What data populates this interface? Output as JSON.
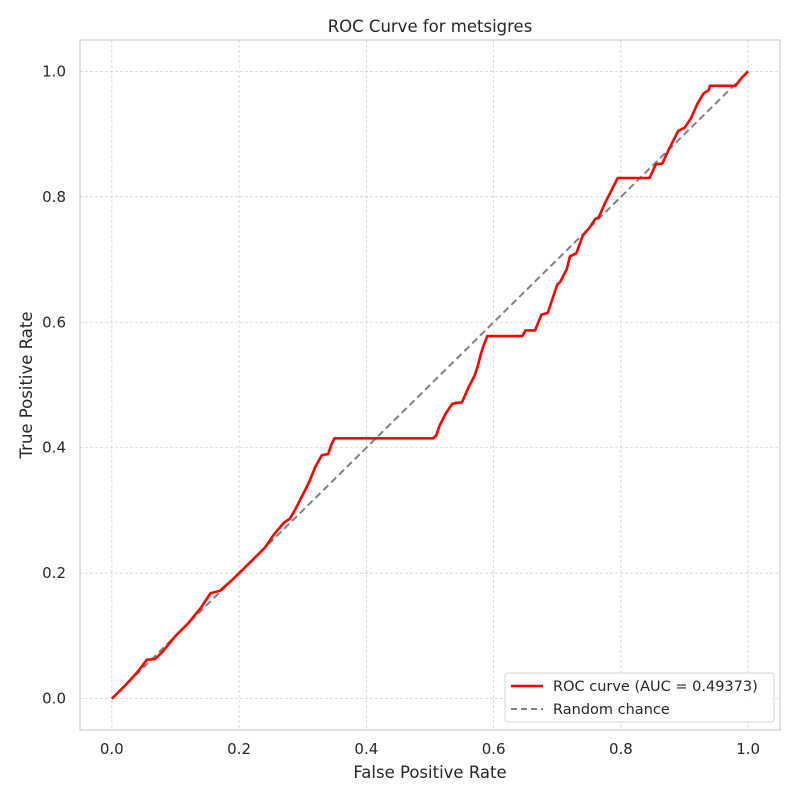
{
  "chart_data": {
    "type": "line",
    "title": "ROC Curve for metsigres",
    "xlabel": "False Positive Rate",
    "ylabel": "True Positive Rate",
    "xlim": [
      -0.05,
      1.05
    ],
    "ylim": [
      -0.05,
      1.05
    ],
    "xticks": [
      "0.0",
      "0.2",
      "0.4",
      "0.6",
      "0.8",
      "1.0"
    ],
    "yticks": [
      "0.0",
      "0.2",
      "0.4",
      "0.6",
      "0.8",
      "1.0"
    ],
    "grid": true,
    "legend_position": "lower-right",
    "series": [
      {
        "name": "ROC curve (AUC = 0.49373)",
        "color": "#ff0000",
        "style": "solid",
        "points": [
          [
            0.0,
            0.0
          ],
          [
            0.02,
            0.02
          ],
          [
            0.04,
            0.042
          ],
          [
            0.055,
            0.062
          ],
          [
            0.068,
            0.063
          ],
          [
            0.08,
            0.075
          ],
          [
            0.1,
            0.1
          ],
          [
            0.12,
            0.12
          ],
          [
            0.14,
            0.145
          ],
          [
            0.155,
            0.168
          ],
          [
            0.17,
            0.172
          ],
          [
            0.19,
            0.19
          ],
          [
            0.21,
            0.21
          ],
          [
            0.225,
            0.225
          ],
          [
            0.24,
            0.24
          ],
          [
            0.255,
            0.262
          ],
          [
            0.27,
            0.28
          ],
          [
            0.28,
            0.287
          ],
          [
            0.29,
            0.305
          ],
          [
            0.3,
            0.325
          ],
          [
            0.31,
            0.345
          ],
          [
            0.32,
            0.37
          ],
          [
            0.33,
            0.388
          ],
          [
            0.34,
            0.39
          ],
          [
            0.345,
            0.405
          ],
          [
            0.35,
            0.415
          ],
          [
            0.4,
            0.415
          ],
          [
            0.45,
            0.415
          ],
          [
            0.505,
            0.415
          ],
          [
            0.51,
            0.42
          ],
          [
            0.515,
            0.435
          ],
          [
            0.525,
            0.455
          ],
          [
            0.535,
            0.47
          ],
          [
            0.545,
            0.472
          ],
          [
            0.55,
            0.472
          ],
          [
            0.56,
            0.495
          ],
          [
            0.57,
            0.515
          ],
          [
            0.575,
            0.53
          ],
          [
            0.58,
            0.55
          ],
          [
            0.585,
            0.565
          ],
          [
            0.59,
            0.578
          ],
          [
            0.6,
            0.578
          ],
          [
            0.625,
            0.578
          ],
          [
            0.645,
            0.578
          ],
          [
            0.65,
            0.587
          ],
          [
            0.665,
            0.587
          ],
          [
            0.675,
            0.612
          ],
          [
            0.685,
            0.615
          ],
          [
            0.69,
            0.63
          ],
          [
            0.7,
            0.66
          ],
          [
            0.705,
            0.665
          ],
          [
            0.715,
            0.685
          ],
          [
            0.72,
            0.705
          ],
          [
            0.73,
            0.71
          ],
          [
            0.74,
            0.738
          ],
          [
            0.75,
            0.75
          ],
          [
            0.76,
            0.765
          ],
          [
            0.765,
            0.767
          ],
          [
            0.775,
            0.79
          ],
          [
            0.785,
            0.81
          ],
          [
            0.795,
            0.83
          ],
          [
            0.82,
            0.83
          ],
          [
            0.845,
            0.83
          ],
          [
            0.855,
            0.852
          ],
          [
            0.865,
            0.853
          ],
          [
            0.875,
            0.875
          ],
          [
            0.89,
            0.905
          ],
          [
            0.9,
            0.91
          ],
          [
            0.91,
            0.925
          ],
          [
            0.92,
            0.948
          ],
          [
            0.93,
            0.965
          ],
          [
            0.938,
            0.97
          ],
          [
            0.94,
            0.977
          ],
          [
            0.96,
            0.977
          ],
          [
            0.98,
            0.977
          ],
          [
            0.99,
            0.99
          ],
          [
            1.0,
            1.0
          ]
        ]
      },
      {
        "name": "Random chance",
        "color": "#808080",
        "style": "dashed",
        "points": [
          [
            0.0,
            0.0
          ],
          [
            1.0,
            1.0
          ]
        ]
      }
    ]
  }
}
